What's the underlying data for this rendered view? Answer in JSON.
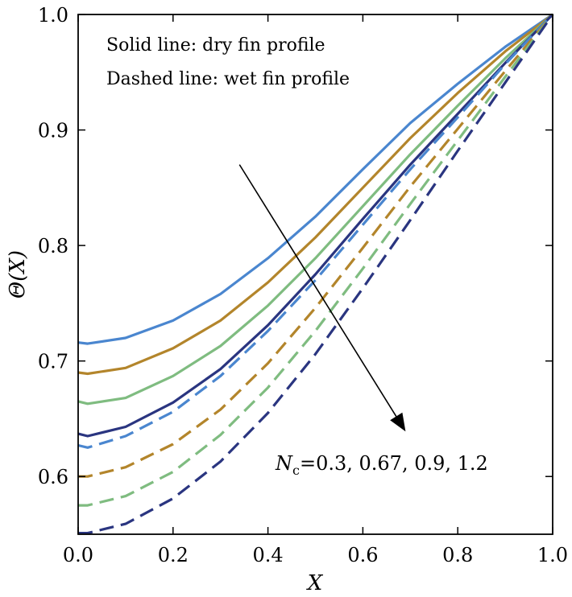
{
  "chart_data": {
    "type": "line",
    "xlabel": "X",
    "ylabel": "Θ(X)",
    "xlim": [
      0.0,
      1.0
    ],
    "ylim": [
      0.55,
      1.0
    ],
    "xticks": [
      "0.0",
      "0.2",
      "0.4",
      "0.6",
      "0.8",
      "1.0"
    ],
    "yticks": [
      "0.6",
      "0.7",
      "0.8",
      "0.9",
      "1.0"
    ],
    "grid": false,
    "text_notes": [
      "Solid line: dry fin profile",
      "Dashed line: wet fin profile"
    ],
    "annotation": {
      "text": "N_c = 0.3, 0.67, 0.9, 1.2",
      "subscript": "c",
      "values_text": "=0.3, 0.67, 0.9, 1.2",
      "arrow_from": [
        0.34,
        0.87
      ],
      "arrow_to": [
        0.69,
        0.639
      ]
    },
    "x": [
      0.0,
      0.02,
      0.1,
      0.2,
      0.3,
      0.4,
      0.5,
      0.6,
      0.7,
      0.8,
      0.9,
      1.0
    ],
    "series": [
      {
        "style": "solid",
        "color": "#4A86CF",
        "values": [
          0.716,
          0.715,
          0.72,
          0.735,
          0.758,
          0.789,
          0.825,
          0.866,
          0.906,
          0.94,
          0.972,
          1.0
        ]
      },
      {
        "style": "solid",
        "color": "#B3852B",
        "values": [
          0.69,
          0.689,
          0.694,
          0.711,
          0.735,
          0.768,
          0.807,
          0.85,
          0.893,
          0.932,
          0.968,
          1.0
        ]
      },
      {
        "style": "solid",
        "color": "#7FBC80",
        "values": [
          0.665,
          0.663,
          0.668,
          0.687,
          0.713,
          0.748,
          0.789,
          0.834,
          0.879,
          0.921,
          0.962,
          1.0
        ]
      },
      {
        "style": "solid",
        "color": "#2A3580",
        "values": [
          0.637,
          0.635,
          0.643,
          0.664,
          0.693,
          0.731,
          0.775,
          0.823,
          0.87,
          0.914,
          0.958,
          1.0
        ]
      },
      {
        "style": "dashed",
        "color": "#4A86CF",
        "values": [
          0.627,
          0.625,
          0.635,
          0.656,
          0.687,
          0.726,
          0.77,
          0.818,
          0.866,
          0.911,
          0.957,
          1.0
        ]
      },
      {
        "style": "dashed",
        "color": "#B3852B",
        "values": [
          0.6,
          0.6,
          0.608,
          0.628,
          0.658,
          0.698,
          0.746,
          0.798,
          0.851,
          0.901,
          0.951,
          1.0
        ]
      },
      {
        "style": "dashed",
        "color": "#7FBC80",
        "values": [
          0.575,
          0.575,
          0.583,
          0.604,
          0.636,
          0.677,
          0.726,
          0.78,
          0.836,
          0.891,
          0.946,
          1.0
        ]
      },
      {
        "style": "dashed",
        "color": "#2A3580",
        "values": [
          0.551,
          0.551,
          0.559,
          0.581,
          0.613,
          0.655,
          0.706,
          0.763,
          0.822,
          0.882,
          0.941,
          1.0
        ]
      }
    ]
  }
}
